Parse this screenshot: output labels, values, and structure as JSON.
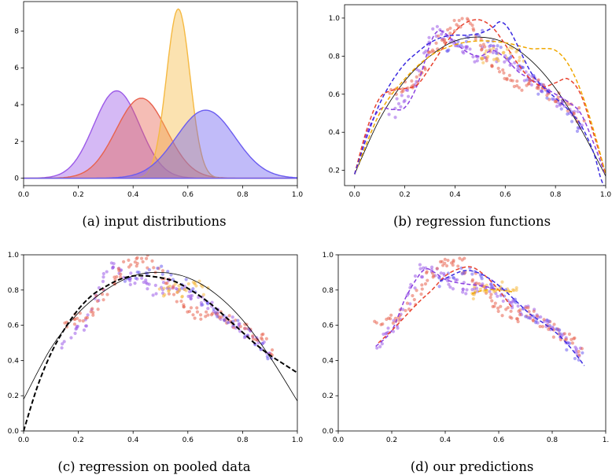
{
  "chart_data": [
    {
      "type": "area",
      "caption": "(a)  input distributions",
      "xlim": [
        0,
        1
      ],
      "ylim": [
        -0.4,
        9.6
      ],
      "xticks": [
        "0.0",
        "0.2",
        "0.4",
        "0.6",
        "0.8",
        "1.0"
      ],
      "yticks": [
        "0",
        "2",
        "4",
        "6",
        "8"
      ],
      "ytick_values": [
        0,
        2,
        4,
        6,
        8
      ],
      "series": [
        {
          "distribution": "normal",
          "mean": 0.34,
          "sd": 0.084,
          "peak": 4.75,
          "color": "#9b59e8"
        },
        {
          "distribution": "normal",
          "mean": 0.43,
          "sd": 0.092,
          "peak": 4.35,
          "color": "#e8624e"
        },
        {
          "distribution": "normal",
          "mean": 0.565,
          "sd": 0.043,
          "peak": 9.2,
          "color": "#f5b942"
        },
        {
          "distribution": "normal",
          "mean": 0.665,
          "sd": 0.107,
          "peak": 3.7,
          "color": "#6b5cf0"
        }
      ]
    },
    {
      "type": "line",
      "caption": "(b)  regression functions",
      "xlim": [
        -0.04,
        1.0
      ],
      "ylim": [
        0.12,
        1.07
      ],
      "xticks": [
        "0.0",
        "0.2",
        "0.4",
        "0.6",
        "0.8",
        "1.0"
      ],
      "yticks": [
        "0.2",
        "0.4",
        "0.6",
        "0.8",
        "1.0"
      ],
      "ytick_values": [
        0.2,
        0.4,
        0.6,
        0.8,
        1.0
      ],
      "true_function": {
        "x": [
          0,
          0.1,
          0.2,
          0.3,
          0.4,
          0.5,
          0.6,
          0.7,
          0.8,
          0.9,
          1.0
        ],
        "y": [
          0.18,
          0.47,
          0.67,
          0.8,
          0.88,
          0.9,
          0.87,
          0.78,
          0.63,
          0.42,
          0.17
        ],
        "color": "#000000"
      },
      "fits": [
        {
          "color": "#8a3fe0",
          "x": [
            0,
            0.05,
            0.1,
            0.15,
            0.2,
            0.25,
            0.3,
            0.33,
            0.36,
            0.4,
            0.45,
            0.5,
            0.55,
            0.6,
            0.65,
            0.7,
            0.75,
            0.8,
            0.85,
            0.9,
            0.95,
            1.0
          ],
          "y": [
            0.18,
            0.4,
            0.52,
            0.52,
            0.53,
            0.65,
            0.86,
            0.93,
            0.92,
            0.87,
            0.82,
            0.8,
            0.83,
            0.79,
            0.72,
            0.68,
            0.64,
            0.6,
            0.56,
            0.5,
            0.35,
            0.17
          ]
        },
        {
          "color": "#e8422e",
          "x": [
            0,
            0.05,
            0.1,
            0.15,
            0.2,
            0.25,
            0.3,
            0.35,
            0.4,
            0.45,
            0.5,
            0.55,
            0.6,
            0.65,
            0.7,
            0.75,
            0.8,
            0.85,
            0.9,
            0.95,
            1.0
          ],
          "y": [
            0.18,
            0.42,
            0.58,
            0.62,
            0.63,
            0.65,
            0.74,
            0.84,
            0.93,
            0.98,
            0.99,
            0.95,
            0.86,
            0.76,
            0.68,
            0.64,
            0.66,
            0.68,
            0.6,
            0.4,
            0.18
          ]
        },
        {
          "color": "#f0a800",
          "x": [
            0,
            0.1,
            0.2,
            0.3,
            0.4,
            0.5,
            0.6,
            0.7,
            0.75,
            0.8,
            0.85,
            0.9,
            0.95,
            1.0
          ],
          "y": [
            0.18,
            0.5,
            0.68,
            0.8,
            0.86,
            0.88,
            0.87,
            0.84,
            0.84,
            0.83,
            0.76,
            0.62,
            0.42,
            0.18
          ]
        },
        {
          "color": "#3a2ae0",
          "x": [
            0,
            0.05,
            0.1,
            0.15,
            0.2,
            0.25,
            0.3,
            0.35,
            0.4,
            0.45,
            0.5,
            0.55,
            0.58,
            0.62,
            0.7,
            0.75,
            0.8,
            0.85,
            0.9,
            0.95,
            0.98,
            1.0
          ],
          "y": [
            0.18,
            0.38,
            0.55,
            0.67,
            0.76,
            0.82,
            0.87,
            0.9,
            0.91,
            0.91,
            0.92,
            0.95,
            0.98,
            0.93,
            0.72,
            0.64,
            0.58,
            0.52,
            0.44,
            0.3,
            0.16,
            0.1
          ]
        }
      ]
    },
    {
      "type": "scatter",
      "caption": "(c)  regression on pooled data",
      "xlim": [
        0,
        1
      ],
      "ylim": [
        0,
        1
      ],
      "xticks": [
        "0.0",
        "0.2",
        "0.4",
        "0.6",
        "0.8",
        "1.0"
      ],
      "yticks": [
        "0.0",
        "0.2",
        "0.4",
        "0.6",
        "0.8",
        "1.0"
      ],
      "ytick_values": [
        0,
        0.2,
        0.4,
        0.6,
        0.8,
        1.0
      ],
      "true_function": {
        "x": [
          0,
          0.1,
          0.2,
          0.3,
          0.4,
          0.5,
          0.6,
          0.7,
          0.8,
          0.9,
          1.0
        ],
        "y": [
          0.18,
          0.47,
          0.67,
          0.8,
          0.88,
          0.9,
          0.87,
          0.78,
          0.63,
          0.42,
          0.17
        ],
        "color": "#000000"
      },
      "pooled_fit": {
        "x": [
          0,
          0.05,
          0.1,
          0.15,
          0.2,
          0.25,
          0.3,
          0.35,
          0.4,
          0.45,
          0.5,
          0.55,
          0.6,
          0.65,
          0.7,
          0.75,
          0.8,
          0.85,
          0.9,
          0.95,
          1.0
        ],
        "y": [
          0.0,
          0.25,
          0.44,
          0.58,
          0.69,
          0.77,
          0.82,
          0.86,
          0.88,
          0.88,
          0.87,
          0.85,
          0.81,
          0.76,
          0.7,
          0.63,
          0.56,
          0.49,
          0.43,
          0.38,
          0.33
        ],
        "color": "#000000"
      }
    },
    {
      "type": "scatter",
      "caption": "(d)  our predictions",
      "xlim": [
        0,
        1
      ],
      "ylim": [
        0,
        1
      ],
      "xticks": [
        "0.0",
        "0.2",
        "0.4",
        "0.6",
        "0.8",
        "1."
      ],
      "yticks": [
        "0.0",
        "0.2",
        "0.4",
        "0.6",
        "0.8",
        "1.0"
      ],
      "ytick_values": [
        0,
        0.2,
        0.4,
        0.6,
        0.8,
        1.0
      ],
      "fits": [
        {
          "color": "#8a3fe0",
          "x": [
            0.14,
            0.2,
            0.25,
            0.3,
            0.33,
            0.36,
            0.4,
            0.45,
            0.5,
            0.55,
            0.6
          ],
          "y": [
            0.48,
            0.57,
            0.75,
            0.88,
            0.92,
            0.9,
            0.86,
            0.84,
            0.83,
            0.82,
            0.8
          ]
        },
        {
          "color": "#e8422e",
          "x": [
            0.15,
            0.2,
            0.25,
            0.3,
            0.35,
            0.4,
            0.45,
            0.5,
            0.55,
            0.6,
            0.65
          ],
          "y": [
            0.5,
            0.57,
            0.65,
            0.73,
            0.8,
            0.88,
            0.92,
            0.93,
            0.88,
            0.8,
            0.7
          ]
        },
        {
          "color": "#f0a800",
          "x": [
            0.5,
            0.55,
            0.6,
            0.65
          ],
          "y": [
            0.78,
            0.8,
            0.8,
            0.79
          ]
        },
        {
          "color": "#3a2ae0",
          "x": [
            0.38,
            0.42,
            0.47,
            0.52,
            0.57,
            0.62,
            0.67,
            0.72,
            0.77,
            0.82,
            0.87,
            0.92
          ],
          "y": [
            0.85,
            0.88,
            0.91,
            0.9,
            0.86,
            0.8,
            0.73,
            0.66,
            0.61,
            0.55,
            0.47,
            0.37
          ]
        }
      ]
    }
  ],
  "scatter_data": {
    "x": [
      0.15,
      0.18,
      0.2,
      0.22,
      0.24,
      0.26,
      0.28,
      0.3,
      0.32,
      0.34,
      0.36,
      0.38,
      0.4,
      0.42,
      0.44,
      0.46,
      0.48,
      0.5,
      0.52,
      0.54,
      0.56,
      0.58,
      0.6,
      0.62,
      0.64,
      0.66,
      0.68,
      0.7,
      0.72,
      0.74,
      0.76,
      0.78,
      0.8,
      0.82,
      0.84,
      0.86,
      0.88,
      0.9
    ],
    "purple_y": [
      0.5,
      0.55,
      0.58,
      0.6,
      0.66,
      0.75,
      0.82,
      0.88,
      0.93,
      0.91,
      0.9,
      0.88,
      0.86,
      0.84,
      0.83,
      0.82,
      0.8,
      0.81,
      0.82,
      0.84,
      0.83,
      0.8,
      0.78,
      0.76,
      0.74,
      0.72,
      0.7,
      0.68,
      0.66,
      0.64,
      0.62,
      0.6,
      0.58,
      0.56,
      0.54,
      0.52,
      0.48,
      0.44
    ],
    "red_y": [
      0.6,
      0.62,
      0.64,
      0.63,
      0.66,
      0.7,
      0.74,
      0.8,
      0.85,
      0.88,
      0.9,
      0.94,
      0.96,
      0.98,
      0.97,
      0.95,
      0.92,
      0.88,
      0.85,
      0.8,
      0.76,
      0.72,
      0.7,
      0.68,
      0.66,
      0.65,
      0.66,
      0.67,
      0.66,
      0.64,
      0.62,
      0.6,
      0.58,
      0.56,
      0.54,
      0.52,
      0.5,
      0.46
    ],
    "orange_x": [
      0.5,
      0.52,
      0.54,
      0.56,
      0.58,
      0.6,
      0.62,
      0.64,
      0.66
    ],
    "orange_y": [
      0.78,
      0.8,
      0.82,
      0.8,
      0.79,
      0.81,
      0.83,
      0.82,
      0.8
    ],
    "blue_x": [
      0.38,
      0.42,
      0.46,
      0.5,
      0.54,
      0.58,
      0.62,
      0.66,
      0.7,
      0.74,
      0.78,
      0.82,
      0.86,
      0.9
    ],
    "blue_y": [
      0.85,
      0.88,
      0.9,
      0.91,
      0.88,
      0.84,
      0.78,
      0.73,
      0.67,
      0.63,
      0.6,
      0.55,
      0.48,
      0.42
    ],
    "colors": {
      "purple": "#9b59e8",
      "red": "#e8624e",
      "orange": "#f5b942",
      "blue": "#6b5cf0"
    }
  }
}
